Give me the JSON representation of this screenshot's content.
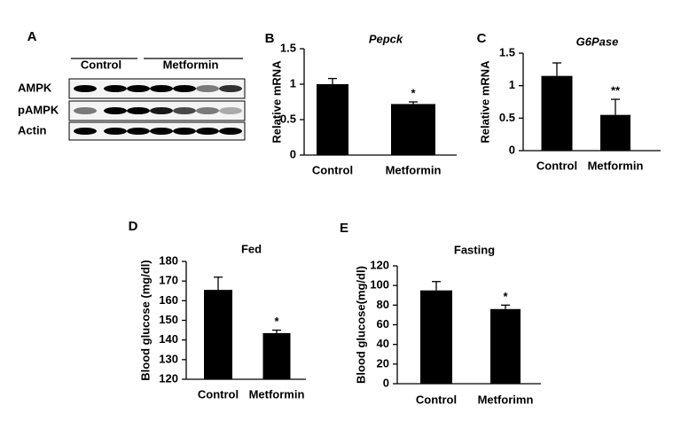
{
  "blot": {
    "label": "A",
    "groups": [
      "Control",
      "Metformin"
    ],
    "rows": [
      "AMPK",
      "pAMPK",
      "Actin"
    ]
  },
  "chart_data": [
    {
      "type": "bar",
      "panel_label": "B",
      "title": "Pepck",
      "y_label": "Relative mRNA",
      "categories": [
        "Control",
        "Metformin"
      ],
      "values": [
        1.0,
        0.72
      ],
      "errors": [
        0.08,
        0.03
      ],
      "color": "#000000",
      "annotation": "*",
      "ylim": [
        0,
        1.5
      ],
      "yticks": [
        0,
        0.5,
        1,
        1.5
      ]
    },
    {
      "type": "bar",
      "panel_label": "C",
      "title": "G6Pase",
      "y_label": "Relative mRNA",
      "categories": [
        "Control",
        "Metformin"
      ],
      "values": [
        1.15,
        0.55
      ],
      "errors": [
        0.2,
        0.24
      ],
      "color": "#000000",
      "annotation": "**",
      "ylim": [
        0,
        1.5
      ],
      "yticks": [
        0,
        0.5,
        1,
        1.5
      ]
    },
    {
      "type": "bar",
      "panel_label": "D",
      "title": "Fed",
      "y_label": "Blood glucose (mg/dl)",
      "categories": [
        "Control",
        "Metformin"
      ],
      "values": [
        165.5,
        143.5
      ],
      "errors": [
        6.5,
        1.5
      ],
      "color": "#000000",
      "annotation": "*",
      "ylim": [
        120,
        180
      ],
      "yticks": [
        120,
        130,
        140,
        150,
        160,
        170,
        180
      ]
    },
    {
      "type": "bar",
      "panel_label": "E",
      "title": "Fasting",
      "y_label": "Blood glucose(mg/dl)",
      "categories": [
        "Control",
        "Metforimn"
      ],
      "values": [
        95,
        76
      ],
      "errors": [
        9,
        4
      ],
      "color": "#000000",
      "annotation": "*",
      "ylim": [
        0,
        120
      ],
      "yticks": [
        0,
        20,
        40,
        60,
        80,
        100,
        120
      ]
    }
  ]
}
